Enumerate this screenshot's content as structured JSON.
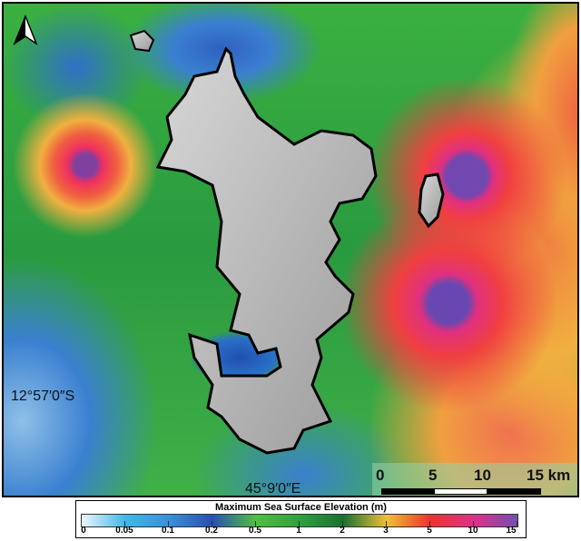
{
  "map": {
    "north_arrow": "north-arrow-icon",
    "latitude_label": "12°57′0″S",
    "longitude_label": "45°9′0″E",
    "scale_bar": {
      "labels": [
        "0",
        "5",
        "10",
        "15 km"
      ]
    }
  },
  "legend": {
    "title": "Maximum Sea Surface Elevation (m)",
    "ticks": [
      "0",
      "0.05",
      "0.1",
      "0.2",
      "0.5",
      "1",
      "2",
      "3",
      "5",
      "10",
      "15"
    ],
    "colors": [
      "#eef6fb",
      "#40b8e8",
      "#3a90d8",
      "#2850b0",
      "#50c040",
      "#30a040",
      "#1a7030",
      "#f0c030",
      "#f03030",
      "#e0308a",
      "#7050b0"
    ]
  }
}
